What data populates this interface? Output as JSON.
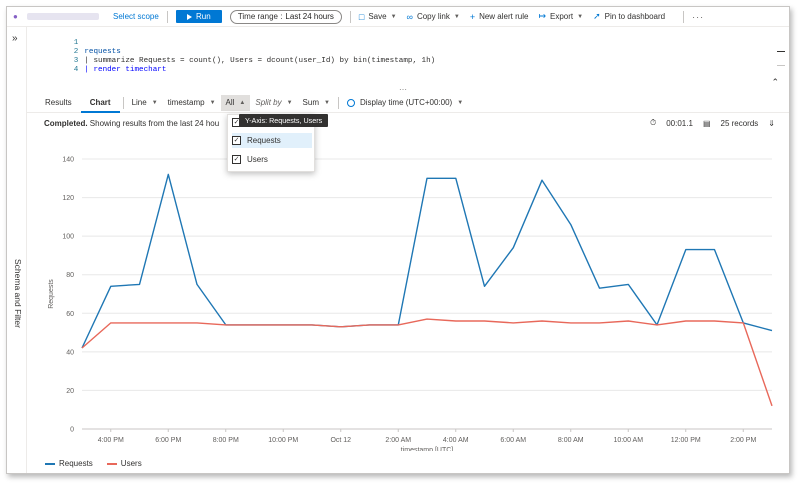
{
  "toolbar": {
    "select_scope": "Select scope",
    "run": "Run",
    "time_range_prefix": "Time range :",
    "time_range_value": "Last 24 hours",
    "save": "Save",
    "copy_link": "Copy link",
    "new_alert_rule": "New alert rule",
    "export": "Export",
    "pin_to_dashboard": "Pin to dashboard",
    "more": "···"
  },
  "side_panel": {
    "label": "Schema and Filter",
    "expand": "»"
  },
  "editor": {
    "lines": [
      {
        "no": "1",
        "text": ""
      },
      {
        "no": "2",
        "text": "requests"
      },
      {
        "no": "3",
        "text": "| summarize Requests = count(), Users = dcount(user_Id) by bin(timestamp, 1h)"
      },
      {
        "no": "4",
        "text": "| render timechart"
      }
    ],
    "collapse": "⌃",
    "dots": "⋯"
  },
  "results": {
    "tabs": [
      "Results",
      "Chart"
    ],
    "active_tab": "Chart",
    "chart_type": "Line",
    "x_column": "timestamp",
    "y_column": "All",
    "split_by": "Split by",
    "aggregation": "Sum",
    "display_time": "Display time (UTC+00:00)"
  },
  "status": {
    "completed": "Completed.",
    "message": " Showing results from the last 24 hou",
    "duration": "00:01.1",
    "records": "25 records"
  },
  "dropdown": {
    "tooltip": "Y-Axis: Requests, Users",
    "select_all_label": "S",
    "options": [
      {
        "label": "Requests",
        "checked": true
      },
      {
        "label": "Users",
        "checked": true
      }
    ]
  },
  "chart_data": {
    "type": "line",
    "x": [
      "3:00 PM",
      "4:00 PM",
      "5:00 PM",
      "6:00 PM",
      "7:00 PM",
      "8:00 PM",
      "9:00 PM",
      "10:00 PM",
      "11:00 PM",
      "Oct 12",
      "1:00 AM",
      "2:00 AM",
      "3:00 AM",
      "4:00 AM",
      "5:00 AM",
      "6:00 AM",
      "7:00 AM",
      "8:00 AM",
      "9:00 AM",
      "10:00 AM",
      "11:00 AM",
      "12:00 PM",
      "1:00 PM",
      "2:00 PM",
      "3:00 PM"
    ],
    "x_ticks": [
      "4:00 PM",
      "6:00 PM",
      "8:00 PM",
      "10:00 PM",
      "Oct 12",
      "2:00 AM",
      "4:00 AM",
      "6:00 AM",
      "8:00 AM",
      "10:00 AM",
      "12:00 PM",
      "2:00 PM"
    ],
    "series": [
      {
        "name": "Requests",
        "color": "#1f77b4",
        "values": [
          42,
          74,
          75,
          132,
          75,
          54,
          54,
          54,
          54,
          53,
          54,
          54,
          130,
          130,
          74,
          94,
          129,
          106,
          73,
          75,
          54,
          93,
          93,
          55,
          51
        ]
      },
      {
        "name": "Users",
        "color": "#e8685a",
        "values": [
          42,
          55,
          55,
          55,
          55,
          54,
          54,
          54,
          54,
          53,
          54,
          54,
          57,
          56,
          56,
          55,
          56,
          55,
          55,
          56,
          54,
          56,
          56,
          55,
          12
        ]
      }
    ],
    "xlabel": "timestamp [UTC]",
    "ylabel": "Requests",
    "ylim": [
      0,
      140
    ],
    "y_ticks": [
      0,
      20,
      40,
      60,
      80,
      100,
      120,
      140
    ],
    "grid": true,
    "legend_position": "bottom-left"
  }
}
